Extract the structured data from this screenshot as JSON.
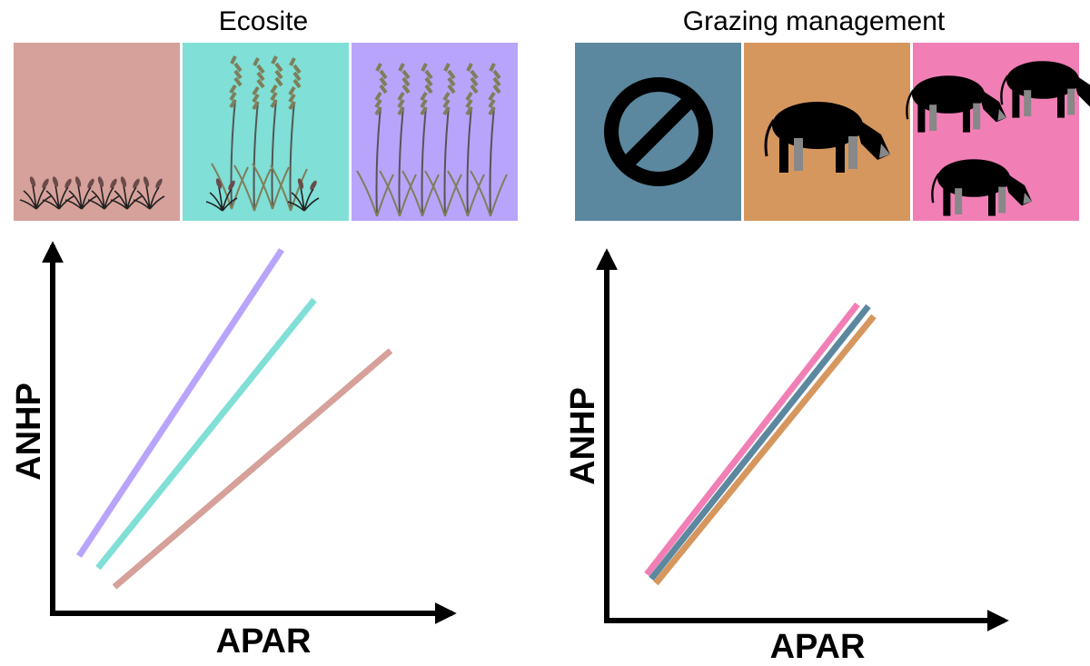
{
  "panels": [
    {
      "title": "Ecosite",
      "y_label": "ANHP",
      "x_label": "APAR"
    },
    {
      "title": "Grazing management",
      "y_label": "ANHP",
      "x_label": "APAR"
    }
  ]
}
